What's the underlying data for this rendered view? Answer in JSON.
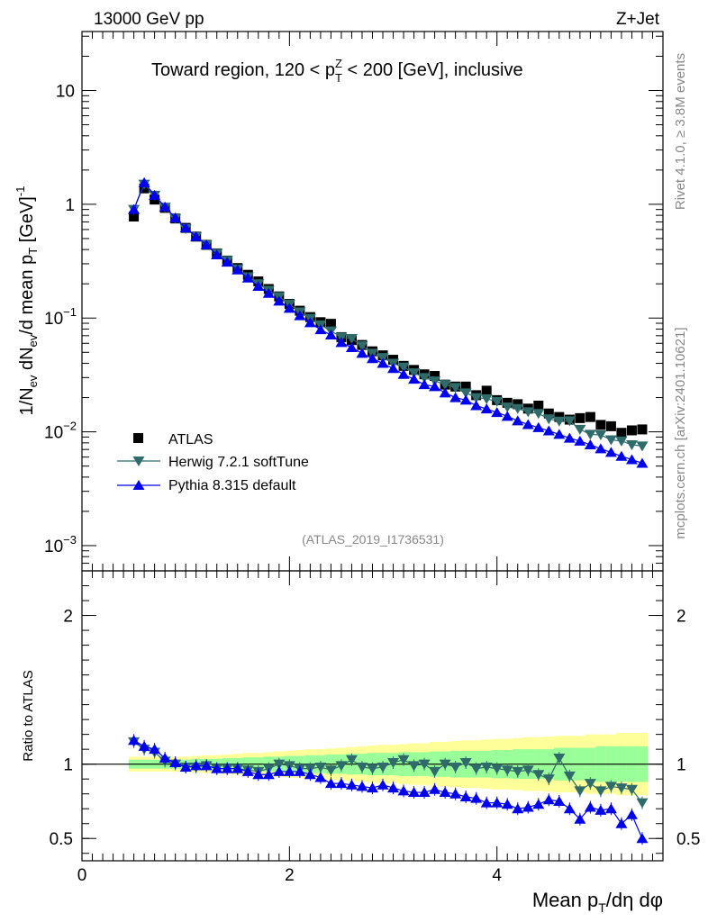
{
  "header": {
    "left": "13000 GeV pp",
    "right": "Z+Jet",
    "side_rivet": "Rivet 4.1.0, ≥ 3.8M events",
    "side_mcplots": "mcplots.cern.ch [arXiv:2401.10621]",
    "analysis_id": "(ATLAS_2019_I1736531)"
  },
  "chart_data": [
    {
      "type": "scatter",
      "title": "Toward region, 120 < pTZ < 200 [GeV], inclusive",
      "title_parts": {
        "pre": "Toward region, 120 < p",
        "sup": "Z",
        "sub": "T",
        "post": " < 200 [GeV], inclusive"
      },
      "ylabel": "1/N_ev dN_ev/d mean p_T [GeV]^-1",
      "yscale": "log",
      "ylim": [
        0.0006,
        33
      ],
      "xlim": [
        0,
        5.6
      ],
      "y_ticks": [
        {
          "value": 10,
          "base": "10",
          "exp": ""
        },
        {
          "value": 1,
          "base": "1",
          "exp": ""
        },
        {
          "value": 0.1,
          "base": "10",
          "exp": "−1"
        },
        {
          "value": 0.01,
          "base": "10",
          "exp": "−2"
        },
        {
          "value": 0.001,
          "base": "10",
          "exp": "−3"
        }
      ],
      "x": [
        0.5,
        0.6,
        0.7,
        0.8,
        0.9,
        1.0,
        1.1,
        1.2,
        1.3,
        1.4,
        1.5,
        1.6,
        1.7,
        1.8,
        1.9,
        2.0,
        2.1,
        2.2,
        2.3,
        2.4,
        2.5,
        2.6,
        2.7,
        2.8,
        2.9,
        3.0,
        3.1,
        3.2,
        3.3,
        3.4,
        3.5,
        3.6,
        3.7,
        3.8,
        3.9,
        4.0,
        4.1,
        4.2,
        4.3,
        4.4,
        4.5,
        4.6,
        4.7,
        4.8,
        4.9,
        5.0,
        5.1,
        5.2,
        5.3,
        5.4
      ],
      "series": [
        {
          "name": "ATLAS",
          "color": "#000000",
          "marker": "square",
          "values": [
            0.78,
            1.38,
            1.1,
            0.93,
            0.75,
            0.62,
            0.52,
            0.44,
            0.37,
            0.32,
            0.275,
            0.24,
            0.21,
            0.18,
            0.155,
            0.133,
            0.116,
            0.102,
            0.092,
            0.089,
            0.068,
            0.064,
            0.058,
            0.051,
            0.047,
            0.043,
            0.038,
            0.035,
            0.032,
            0.031,
            0.026,
            0.025,
            0.025,
            0.021,
            0.023,
            0.019,
            0.018,
            0.0175,
            0.016,
            0.017,
            0.0145,
            0.0135,
            0.0128,
            0.0132,
            0.0135,
            0.0115,
            0.0112,
            0.0098,
            0.0103,
            0.0105
          ]
        },
        {
          "name": "Herwig 7.2.1 softTune",
          "color": "#2f6b6b",
          "marker": "triangle-down",
          "values": [
            0.9,
            1.5,
            1.2,
            0.94,
            0.75,
            0.61,
            0.52,
            0.44,
            0.37,
            0.32,
            0.27,
            0.23,
            0.2,
            0.175,
            0.154,
            0.132,
            0.113,
            0.099,
            0.087,
            0.077,
            0.068,
            0.066,
            0.057,
            0.049,
            0.045,
            0.04,
            0.037,
            0.033,
            0.03,
            0.028,
            0.026,
            0.0245,
            0.022,
            0.02,
            0.0195,
            0.0185,
            0.0165,
            0.016,
            0.015,
            0.0145,
            0.013,
            0.0124,
            0.0125,
            0.0105,
            0.0095,
            0.0094,
            0.0085,
            0.0083,
            0.0077,
            0.0075
          ]
        },
        {
          "name": "Pythia 8.315 default",
          "color": "#0000ee",
          "marker": "triangle-up",
          "values": [
            0.9,
            1.55,
            1.2,
            0.95,
            0.76,
            0.62,
            0.52,
            0.44,
            0.36,
            0.31,
            0.265,
            0.225,
            0.19,
            0.165,
            0.141,
            0.122,
            0.105,
            0.091,
            0.079,
            0.071,
            0.061,
            0.055,
            0.049,
            0.044,
            0.04,
            0.036,
            0.032,
            0.029,
            0.026,
            0.025,
            0.022,
            0.02,
            0.019,
            0.017,
            0.0159,
            0.0148,
            0.0137,
            0.0125,
            0.0116,
            0.0109,
            0.0102,
            0.0095,
            0.0088,
            0.0083,
            0.0077,
            0.0071,
            0.0066,
            0.0061,
            0.0057,
            0.0053
          ]
        }
      ]
    },
    {
      "type": "scatter",
      "title": "",
      "ylabel": "Ratio to ATLAS",
      "xlabel": "Mean p_T/dη dφ",
      "ylim": [
        0.35,
        2.3
      ],
      "xlim": [
        0,
        5.6
      ],
      "y_ticks": [
        {
          "value": 2,
          "label": "2"
        },
        {
          "value": 1,
          "label": "1"
        },
        {
          "value": 0.5,
          "label": "0.5"
        }
      ],
      "x_ticks": [
        {
          "value": 0,
          "label": "0"
        },
        {
          "value": 2,
          "label": "2"
        },
        {
          "value": 4,
          "label": "4"
        }
      ],
      "reference": 1,
      "band_inner": [
        0.03,
        0.03,
        0.03,
        0.03,
        0.03,
        0.03,
        0.035,
        0.035,
        0.035,
        0.04,
        0.04,
        0.045,
        0.045,
        0.05,
        0.05,
        0.055,
        0.055,
        0.06,
        0.06,
        0.065,
        0.065,
        0.07,
        0.07,
        0.075,
        0.075,
        0.075,
        0.08,
        0.08,
        0.08,
        0.085,
        0.085,
        0.09,
        0.09,
        0.09,
        0.09,
        0.095,
        0.095,
        0.1,
        0.1,
        0.1,
        0.1,
        0.11,
        0.11,
        0.11,
        0.11,
        0.12,
        0.12,
        0.12,
        0.12,
        0.12
      ],
      "band_outer": [
        0.05,
        0.05,
        0.05,
        0.05,
        0.05,
        0.05,
        0.055,
        0.06,
        0.06,
        0.065,
        0.07,
        0.075,
        0.075,
        0.08,
        0.085,
        0.09,
        0.095,
        0.1,
        0.1,
        0.105,
        0.11,
        0.115,
        0.12,
        0.125,
        0.13,
        0.13,
        0.135,
        0.14,
        0.14,
        0.15,
        0.15,
        0.155,
        0.16,
        0.16,
        0.165,
        0.17,
        0.17,
        0.175,
        0.18,
        0.18,
        0.185,
        0.19,
        0.19,
        0.19,
        0.2,
        0.2,
        0.2,
        0.21,
        0.21,
        0.21
      ],
      "series": [
        {
          "name": "Herwig 7.2.1 softTune",
          "color": "#2f6b6b",
          "marker": "triangle-down",
          "values": [
            1.15,
            1.1,
            1.08,
            1.02,
            1.0,
            0.98,
            0.98,
            0.99,
            0.97,
            0.97,
            0.97,
            0.96,
            0.95,
            0.97,
            1.0,
            0.99,
            0.97,
            0.97,
            0.98,
            0.96,
            0.99,
            1.03,
            0.98,
            0.97,
            0.98,
            1.01,
            1.03,
            0.99,
            1.0,
            0.95,
            1.0,
            0.98,
            1.01,
            0.97,
            0.98,
            0.97,
            0.96,
            0.95,
            0.96,
            0.93,
            0.9,
            1.04,
            0.92,
            0.82,
            0.87,
            0.82,
            0.85,
            0.84,
            0.83,
            0.74
          ]
        },
        {
          "name": "Pythia 8.315 default",
          "color": "#0000ee",
          "marker": "triangle-up",
          "values": [
            1.16,
            1.12,
            1.1,
            1.04,
            1.01,
            0.98,
            0.99,
            0.99,
            0.97,
            0.97,
            0.97,
            0.95,
            0.93,
            0.93,
            0.95,
            0.95,
            0.95,
            0.93,
            0.91,
            0.87,
            0.87,
            0.86,
            0.85,
            0.84,
            0.86,
            0.84,
            0.82,
            0.81,
            0.81,
            0.83,
            0.81,
            0.8,
            0.78,
            0.77,
            0.74,
            0.74,
            0.73,
            0.7,
            0.71,
            0.73,
            0.76,
            0.75,
            0.7,
            0.63,
            0.71,
            0.69,
            0.7,
            0.6,
            0.66,
            0.5
          ]
        }
      ]
    }
  ]
}
